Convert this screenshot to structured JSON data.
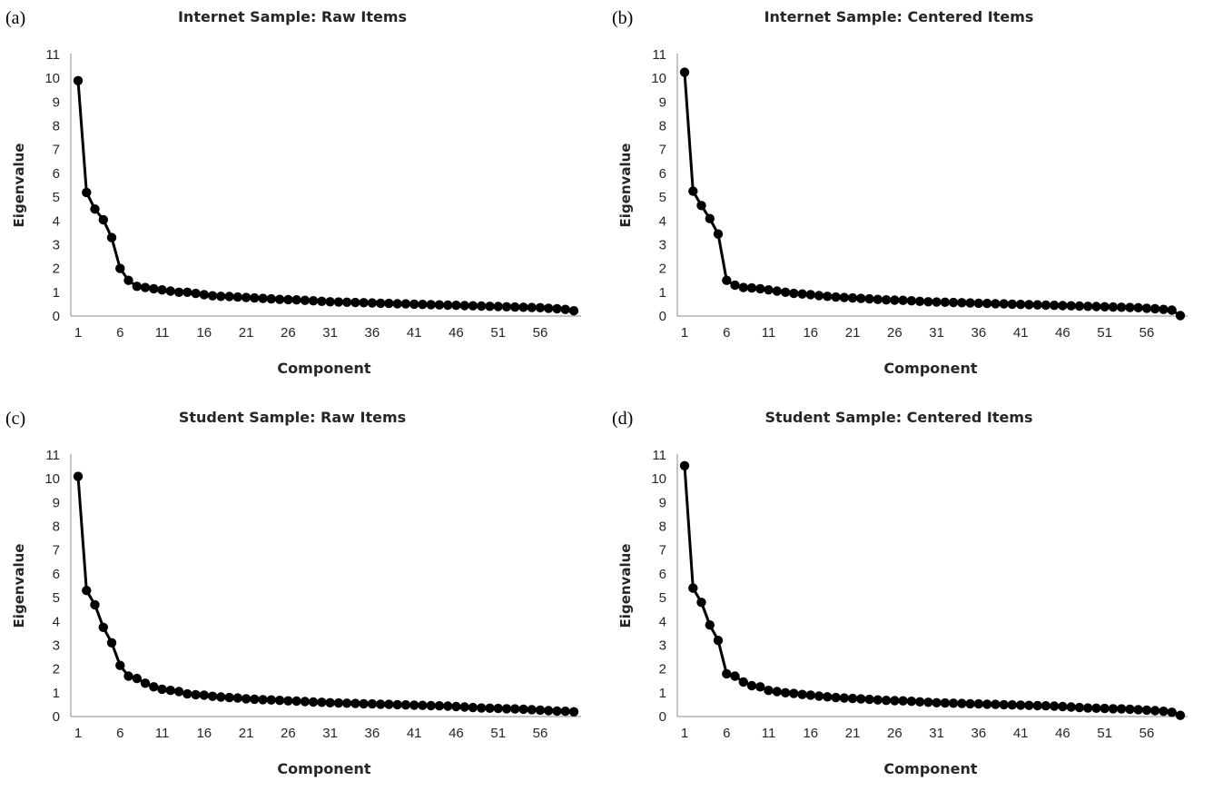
{
  "chart_data": [
    {
      "type": "line",
      "panel_label": "(a)",
      "title": "Internet Sample: Raw Items",
      "xlabel": "Component",
      "ylabel": "Eigenvalue",
      "ylim": [
        0,
        11
      ],
      "xlim": [
        1,
        60
      ],
      "x_tick_labels": [
        "1",
        "6",
        "11",
        "16",
        "21",
        "26",
        "31",
        "36",
        "41",
        "46",
        "51",
        "56"
      ],
      "y_tick_labels": [
        "0",
        "1",
        "2",
        "3",
        "4",
        "5",
        "6",
        "7",
        "8",
        "9",
        "10",
        "11"
      ],
      "series": [
        {
          "values": [
            9.9,
            5.2,
            4.5,
            4.05,
            3.3,
            2.0,
            1.5,
            1.25,
            1.2,
            1.15,
            1.1,
            1.05,
            1.0,
            1.0,
            0.95,
            0.9,
            0.85,
            0.83,
            0.82,
            0.8,
            0.78,
            0.76,
            0.74,
            0.72,
            0.7,
            0.69,
            0.68,
            0.66,
            0.64,
            0.62,
            0.6,
            0.59,
            0.58,
            0.57,
            0.56,
            0.55,
            0.54,
            0.53,
            0.52,
            0.51,
            0.5,
            0.49,
            0.48,
            0.47,
            0.46,
            0.45,
            0.44,
            0.43,
            0.42,
            0.41,
            0.4,
            0.39,
            0.38,
            0.37,
            0.36,
            0.35,
            0.33,
            0.31,
            0.28,
            0.22
          ]
        }
      ]
    },
    {
      "type": "line",
      "panel_label": "(b)",
      "title": "Internet Sample: Centered Items",
      "xlabel": "Component",
      "ylabel": "Eigenvalue",
      "ylim": [
        0,
        11
      ],
      "xlim": [
        1,
        60
      ],
      "x_tick_labels": [
        "1",
        "6",
        "11",
        "16",
        "21",
        "26",
        "31",
        "36",
        "41",
        "46",
        "51",
        "56"
      ],
      "y_tick_labels": [
        "0",
        "1",
        "2",
        "3",
        "4",
        "5",
        "6",
        "7",
        "8",
        "9",
        "10",
        "11"
      ],
      "series": [
        {
          "values": [
            10.25,
            5.25,
            4.65,
            4.1,
            3.45,
            1.5,
            1.3,
            1.2,
            1.18,
            1.15,
            1.1,
            1.05,
            1.0,
            0.95,
            0.93,
            0.9,
            0.86,
            0.83,
            0.8,
            0.78,
            0.76,
            0.74,
            0.72,
            0.7,
            0.68,
            0.67,
            0.66,
            0.64,
            0.62,
            0.6,
            0.59,
            0.58,
            0.57,
            0.56,
            0.55,
            0.54,
            0.53,
            0.52,
            0.51,
            0.5,
            0.49,
            0.48,
            0.47,
            0.46,
            0.45,
            0.44,
            0.43,
            0.42,
            0.41,
            0.4,
            0.39,
            0.38,
            0.37,
            0.36,
            0.35,
            0.33,
            0.31,
            0.28,
            0.25,
            0.02
          ]
        }
      ]
    },
    {
      "type": "line",
      "panel_label": "(c)",
      "title": "Student Sample: Raw Items",
      "xlabel": "Component",
      "ylabel": "Eigenvalue",
      "ylim": [
        0,
        11
      ],
      "xlim": [
        1,
        60
      ],
      "x_tick_labels": [
        "1",
        "6",
        "11",
        "16",
        "21",
        "26",
        "31",
        "36",
        "41",
        "46",
        "51",
        "56"
      ],
      "y_tick_labels": [
        "0",
        "1",
        "2",
        "3",
        "4",
        "5",
        "6",
        "7",
        "8",
        "9",
        "10",
        "11"
      ],
      "series": [
        {
          "values": [
            10.1,
            5.3,
            4.7,
            3.75,
            3.1,
            2.15,
            1.7,
            1.6,
            1.4,
            1.25,
            1.15,
            1.1,
            1.05,
            0.95,
            0.92,
            0.9,
            0.85,
            0.82,
            0.8,
            0.78,
            0.75,
            0.73,
            0.71,
            0.7,
            0.68,
            0.66,
            0.65,
            0.63,
            0.61,
            0.6,
            0.58,
            0.57,
            0.56,
            0.55,
            0.54,
            0.53,
            0.52,
            0.51,
            0.5,
            0.49,
            0.48,
            0.47,
            0.46,
            0.45,
            0.44,
            0.42,
            0.4,
            0.38,
            0.36,
            0.35,
            0.34,
            0.33,
            0.32,
            0.31,
            0.29,
            0.27,
            0.25,
            0.23,
            0.22,
            0.2
          ]
        }
      ]
    },
    {
      "type": "line",
      "panel_label": "(d)",
      "title": "Student Sample: Centered Items",
      "xlabel": "Component",
      "ylabel": "Eigenvalue",
      "ylim": [
        0,
        11
      ],
      "xlim": [
        1,
        60
      ],
      "x_tick_labels": [
        "1",
        "6",
        "11",
        "16",
        "21",
        "26",
        "31",
        "36",
        "41",
        "46",
        "51",
        "56"
      ],
      "y_tick_labels": [
        "0",
        "1",
        "2",
        "3",
        "4",
        "5",
        "6",
        "7",
        "8",
        "9",
        "10",
        "11"
      ],
      "series": [
        {
          "values": [
            10.55,
            5.4,
            4.8,
            3.85,
            3.2,
            1.8,
            1.7,
            1.45,
            1.3,
            1.25,
            1.1,
            1.05,
            1.0,
            0.97,
            0.93,
            0.9,
            0.86,
            0.83,
            0.8,
            0.78,
            0.76,
            0.74,
            0.72,
            0.7,
            0.68,
            0.67,
            0.66,
            0.64,
            0.62,
            0.6,
            0.58,
            0.57,
            0.56,
            0.55,
            0.54,
            0.53,
            0.52,
            0.51,
            0.5,
            0.49,
            0.48,
            0.47,
            0.46,
            0.45,
            0.44,
            0.42,
            0.4,
            0.38,
            0.36,
            0.35,
            0.34,
            0.33,
            0.32,
            0.31,
            0.29,
            0.27,
            0.25,
            0.22,
            0.18,
            0.05
          ]
        }
      ]
    }
  ]
}
